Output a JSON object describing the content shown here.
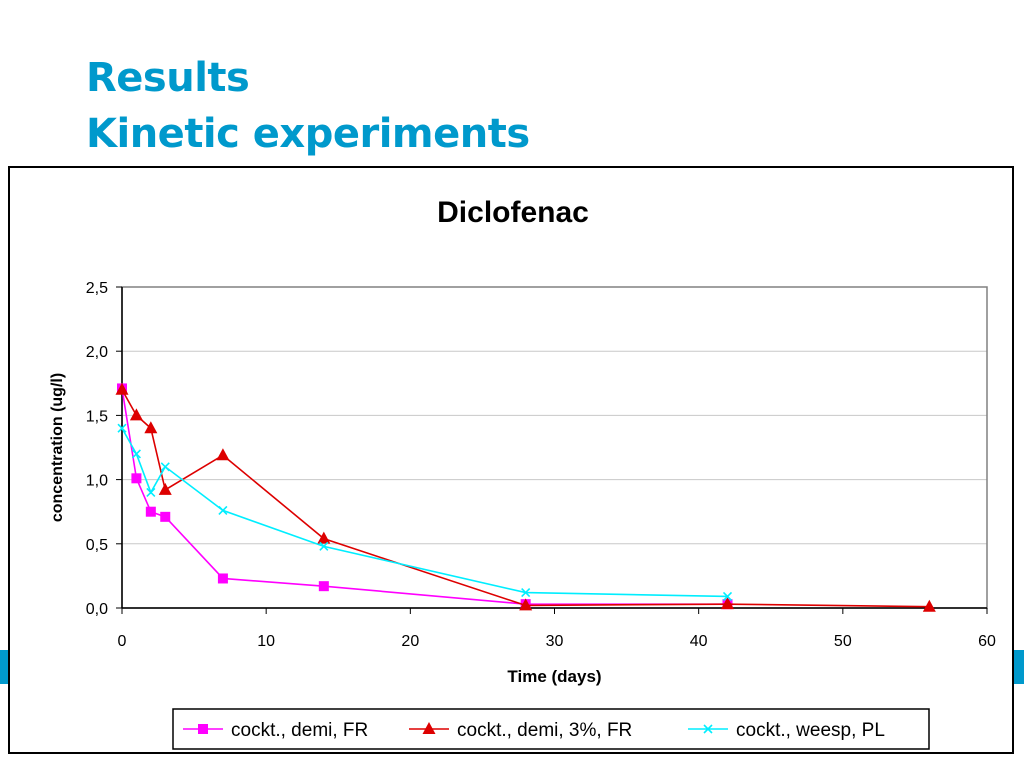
{
  "slide": {
    "title_line1": "Results",
    "title_line2": "Kinetic experiments"
  },
  "colors": {
    "title": "#0099cc",
    "side_bars": "#0099cc"
  },
  "chart_data": {
    "type": "line",
    "title": "Diclofenac",
    "xlabel": "Time (days)",
    "ylabel": "concentration (ug/l)",
    "xlim": [
      0,
      60
    ],
    "ylim": [
      0,
      2.5
    ],
    "x_ticks": [
      0,
      10,
      20,
      30,
      40,
      50,
      60
    ],
    "x_tick_labels": [
      "0",
      "10",
      "20",
      "30",
      "40",
      "50",
      "60"
    ],
    "y_ticks": [
      0,
      0.5,
      1.0,
      1.5,
      2.0,
      2.5
    ],
    "y_tick_labels": [
      "0,0",
      "0,5",
      "1,0",
      "1,5",
      "2,0",
      "2,5"
    ],
    "grid": "horizontal",
    "legend_position": "bottom",
    "series": [
      {
        "name": "cockt., demi, FR",
        "color": "#ff00ff",
        "marker": "square",
        "x": [
          0,
          1,
          2,
          3,
          7,
          14,
          28,
          42
        ],
        "y": [
          1.71,
          1.01,
          0.75,
          0.71,
          0.23,
          0.17,
          0.03,
          0.03
        ]
      },
      {
        "name": "cockt., demi, 3%, FR",
        "color": "#dd0000",
        "marker": "triangle",
        "x": [
          0,
          1,
          2,
          3,
          7,
          14,
          28,
          42,
          56
        ],
        "y": [
          1.7,
          1.5,
          1.4,
          0.92,
          1.19,
          0.54,
          0.02,
          0.03,
          0.01
        ]
      },
      {
        "name": "cockt., weesp, PL",
        "color": "#00eeff",
        "marker": "x",
        "x": [
          0,
          1,
          2,
          3,
          7,
          14,
          28,
          42
        ],
        "y": [
          1.4,
          1.2,
          0.9,
          1.1,
          0.76,
          0.48,
          0.12,
          0.09
        ]
      }
    ]
  }
}
